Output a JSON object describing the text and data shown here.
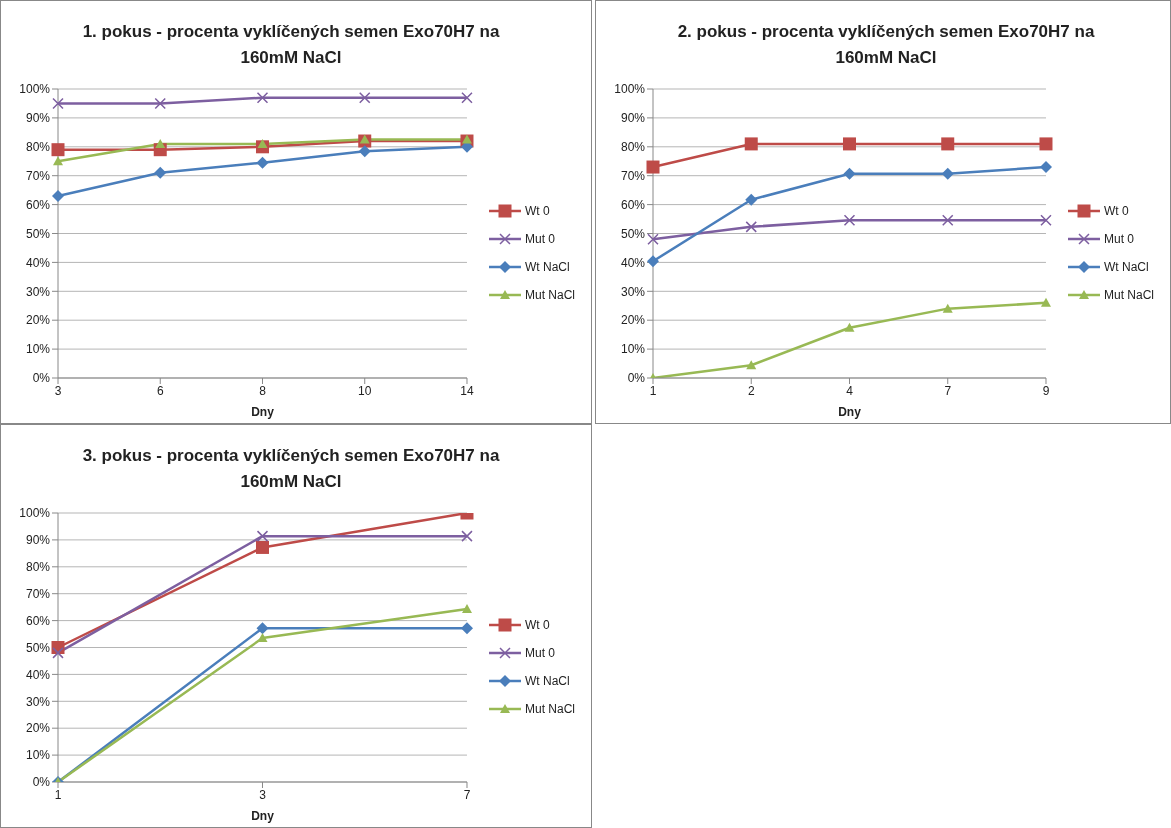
{
  "chart_data": [
    {
      "type": "line",
      "title": "1. pokus - procenta vyklíčených semen Exo70H7 na 160mM NaCl",
      "xlabel": "Dny",
      "categories": [
        "3",
        "6",
        "8",
        "10",
        "14"
      ],
      "ylim": [
        0,
        100
      ],
      "yticks": [
        {
          "value": 0,
          "label": "0%"
        },
        {
          "value": 10,
          "label": "10%"
        },
        {
          "value": 20,
          "label": "20%"
        },
        {
          "value": 30,
          "label": "30%"
        },
        {
          "value": 40,
          "label": "40%"
        },
        {
          "value": 50,
          "label": "50%"
        },
        {
          "value": 60,
          "label": "60%"
        },
        {
          "value": 70,
          "label": "70%"
        },
        {
          "value": 80,
          "label": "80%"
        },
        {
          "value": 90,
          "label": "90%"
        },
        {
          "value": 100,
          "label": "100%"
        }
      ],
      "grid": "y",
      "legend": "right",
      "series": [
        {
          "name": "Wt 0",
          "color": "#be4b48",
          "marker": "square",
          "values": [
            79,
            79,
            80,
            82,
            82
          ]
        },
        {
          "name": "Mut 0",
          "color": "#7d5fa0",
          "marker": "cross",
          "values": [
            95,
            95,
            97,
            97,
            97
          ]
        },
        {
          "name": "Wt NaCl",
          "color": "#4a7ebb",
          "marker": "diamond",
          "values": [
            63,
            71,
            74.5,
            78.5,
            80
          ]
        },
        {
          "name": "Mut NaCl",
          "color": "#98b954",
          "marker": "triangle",
          "values": [
            75,
            81,
            81,
            82.5,
            82.5
          ]
        }
      ]
    },
    {
      "type": "line",
      "title": "2. pokus - procenta vyklíčených semen Exo70H7 na 160mM NaCl",
      "xlabel": "Dny",
      "categories": [
        "1",
        "2",
        "4",
        "7",
        "9"
      ],
      "ylim": [
        0,
        100
      ],
      "yticks": [
        {
          "value": 0,
          "label": "0%"
        },
        {
          "value": 10,
          "label": "10%"
        },
        {
          "value": 20,
          "label": "20%"
        },
        {
          "value": 30,
          "label": "30%"
        },
        {
          "value": 40,
          "label": "40%"
        },
        {
          "value": 50,
          "label": "50%"
        },
        {
          "value": 60,
          "label": "60%"
        },
        {
          "value": 70,
          "label": "70%"
        },
        {
          "value": 80,
          "label": "80%"
        },
        {
          "value": 90,
          "label": "90%"
        },
        {
          "value": 100,
          "label": "100%"
        }
      ],
      "grid": "y",
      "legend": "right",
      "series": [
        {
          "name": "Wt 0",
          "color": "#be4b48",
          "marker": "square",
          "values": [
            73,
            81,
            81,
            81,
            81
          ]
        },
        {
          "name": "Mut 0",
          "color": "#7d5fa0",
          "marker": "cross",
          "values": [
            48,
            52.3,
            54.6,
            54.6,
            54.6
          ]
        },
        {
          "name": "Wt NaCl",
          "color": "#4a7ebb",
          "marker": "diamond",
          "values": [
            40.4,
            61.7,
            70.7,
            70.7,
            73
          ]
        },
        {
          "name": "Mut NaCl",
          "color": "#98b954",
          "marker": "triangle",
          "values": [
            0,
            4.4,
            17.4,
            24,
            26
          ]
        }
      ]
    },
    {
      "type": "line",
      "title": "3. pokus - procenta vyklíčených semen Exo70H7 na 160mM NaCl",
      "xlabel": "Dny",
      "categories": [
        "1",
        "3",
        "7"
      ],
      "ylim": [
        0,
        100
      ],
      "yticks": [
        {
          "value": 0,
          "label": "0%"
        },
        {
          "value": 10,
          "label": "10%"
        },
        {
          "value": 20,
          "label": "20%"
        },
        {
          "value": 30,
          "label": "30%"
        },
        {
          "value": 40,
          "label": "40%"
        },
        {
          "value": 50,
          "label": "50%"
        },
        {
          "value": 60,
          "label": "60%"
        },
        {
          "value": 70,
          "label": "70%"
        },
        {
          "value": 80,
          "label": "80%"
        },
        {
          "value": 90,
          "label": "90%"
        },
        {
          "value": 100,
          "label": "100%"
        }
      ],
      "grid": "y",
      "legend": "right",
      "series": [
        {
          "name": "Wt 0",
          "color": "#be4b48",
          "marker": "square",
          "values": [
            50,
            87.2,
            100
          ]
        },
        {
          "name": "Mut 0",
          "color": "#7d5fa0",
          "marker": "cross",
          "values": [
            48,
            91.4,
            91.4
          ]
        },
        {
          "name": "Wt NaCl",
          "color": "#4a7ebb",
          "marker": "diamond",
          "values": [
            0,
            57.2,
            57.2
          ]
        },
        {
          "name": "Mut NaCl",
          "color": "#98b954",
          "marker": "triangle",
          "values": [
            0,
            53.5,
            64.3
          ]
        }
      ]
    }
  ]
}
